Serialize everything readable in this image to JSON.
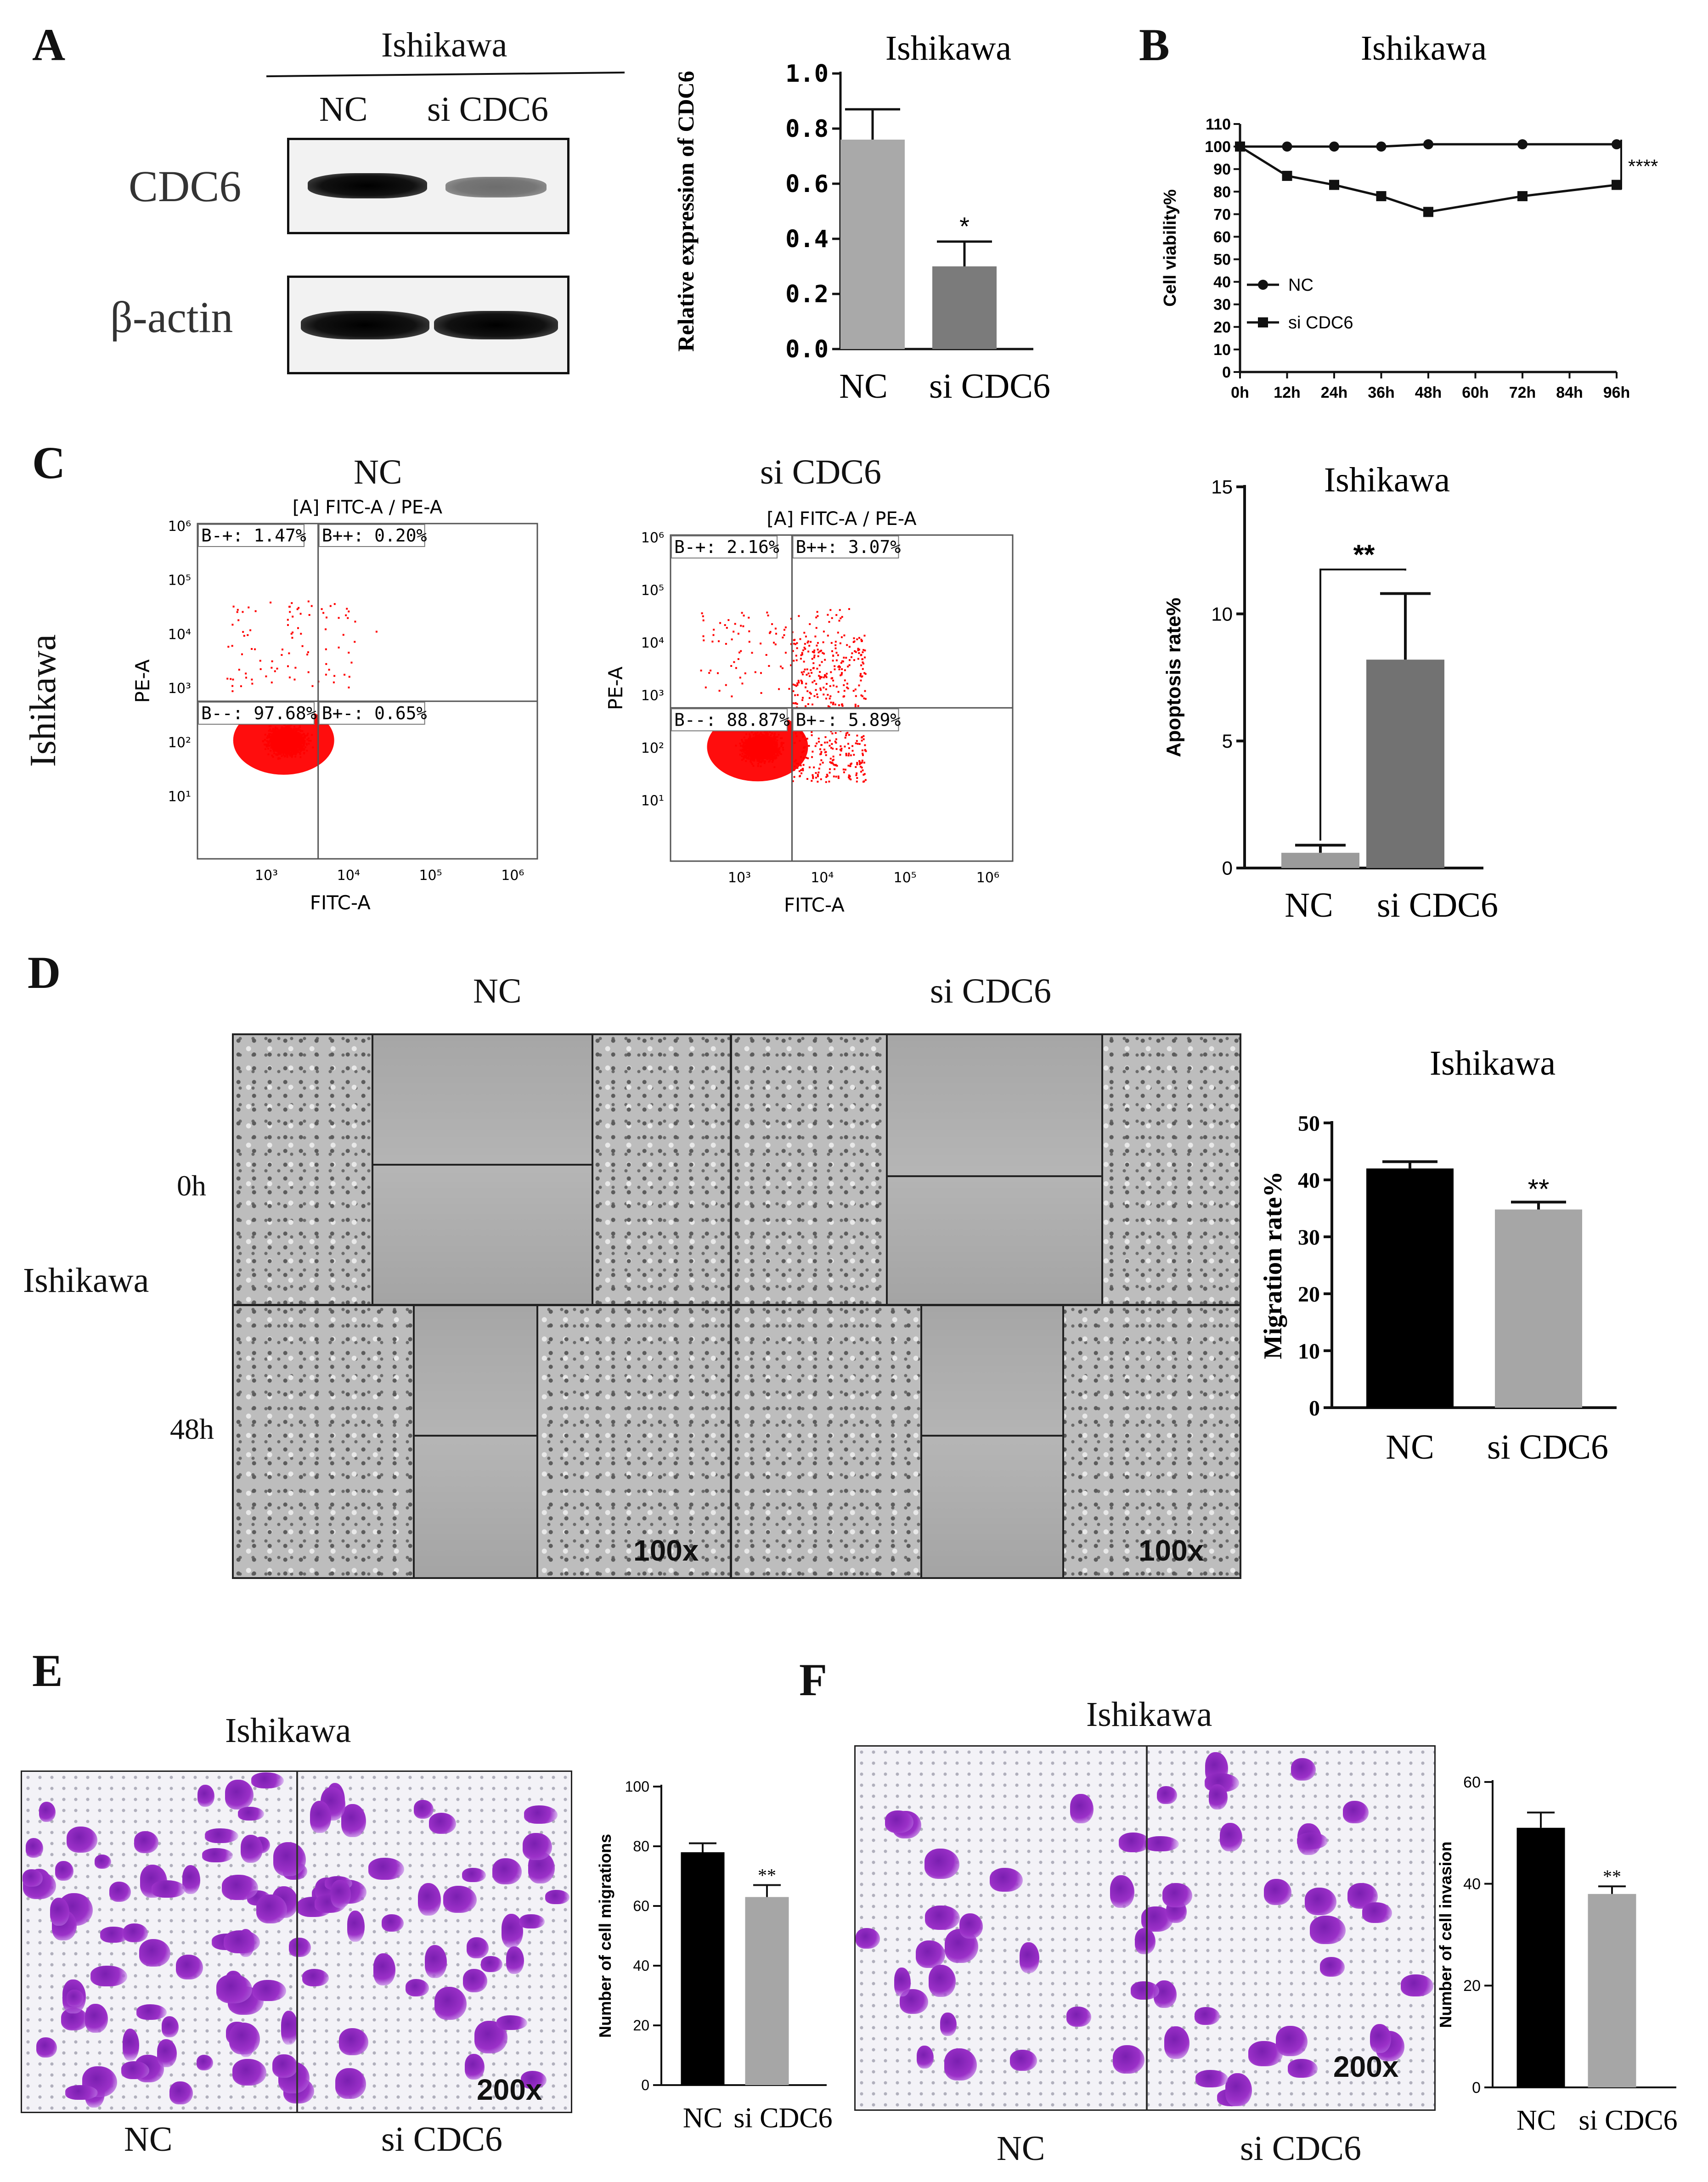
{
  "panels": {
    "A": "A",
    "B": "B",
    "C": "C",
    "D": "D",
    "E": "E",
    "F": "F"
  },
  "western_blot": {
    "cell_line": "Ishikawa",
    "lanes": [
      "NC",
      "si CDC6"
    ],
    "rows": [
      "CDC6",
      "β-actin"
    ]
  },
  "scratch": {
    "conditions": [
      "NC",
      "si CDC6"
    ],
    "cell_line": "Ishikawa",
    "times": [
      "0h",
      "48h"
    ],
    "magnification": "100x"
  },
  "transwell_migration": {
    "title": "Ishikawa",
    "labels": [
      "NC",
      "si CDC6"
    ],
    "magnification": "200x"
  },
  "transwell_invasion": {
    "title": "Ishikawa",
    "labels": [
      "NC",
      "si CDC6"
    ],
    "magnification": "200x"
  },
  "flow": {
    "cell_line": "Ishikawa",
    "plots": [
      {
        "title": "NC",
        "subtitle": "[A] FITC-A / PE-A",
        "q_ul": "B-+: 1.47%",
        "q_ur": "B++: 0.20%",
        "q_ll": "B--: 97.68%",
        "q_lr": "B+-: 0.65%"
      },
      {
        "title": "si CDC6",
        "subtitle": "[A] FITC-A / PE-A",
        "q_ul": "B-+: 2.16%",
        "q_ur": "B++: 3.07%",
        "q_ll": "B--: 88.87%",
        "q_lr": "B+-: 5.89%"
      }
    ],
    "xlabel": "FITC-A",
    "ylabel": "PE-A",
    "x_ticks": [
      "10³",
      "10⁴",
      "10⁵",
      "10⁶"
    ],
    "y_ticks": [
      "10⁶",
      "10⁵",
      "10⁴",
      "10³",
      "10²",
      "10¹"
    ]
  },
  "colors": {
    "dot": "#ff0000",
    "bar_light": "#a9a9a9",
    "bar_dark": "#7a7a7a",
    "bar_black": "#000000",
    "bar_grey": "#a6a6a6",
    "stain": "#9b30c8"
  },
  "chart_data": [
    {
      "type": "bar",
      "panel": "A",
      "title": "Ishikawa",
      "ylabel": "Relative expression of CDC6",
      "categories": [
        "NC",
        "si CDC6"
      ],
      "values": [
        0.76,
        0.3
      ],
      "errors": [
        0.11,
        0.09
      ],
      "ylim": [
        0,
        1.0
      ],
      "yticks": [
        "0.0",
        "0.2",
        "0.4",
        "0.6",
        "0.8",
        "1.0"
      ],
      "annotations": [
        "*"
      ]
    },
    {
      "type": "line",
      "panel": "B",
      "title": "Ishikawa",
      "ylabel": "Cell viability%",
      "x": [
        "0h",
        "12h",
        "24h",
        "36h",
        "48h",
        "60h",
        "72h",
        "84h",
        "96h"
      ],
      "series": [
        {
          "name": "NC",
          "x": [
            "0h",
            "12h",
            "24h",
            "36h",
            "48h",
            "72h",
            "96h"
          ],
          "values": [
            100,
            100,
            100,
            100,
            101,
            101,
            101
          ]
        },
        {
          "name": "si CDC6",
          "x": [
            "0h",
            "12h",
            "24h",
            "36h",
            "48h",
            "72h",
            "96h"
          ],
          "values": [
            100,
            87,
            83,
            78,
            71,
            78,
            83
          ]
        }
      ],
      "ylim": [
        0,
        110
      ],
      "yticks": [
        "0",
        "10",
        "20",
        "30",
        "40",
        "50",
        "60",
        "70",
        "80",
        "90",
        "100",
        "110"
      ],
      "annotations": [
        "****"
      ]
    },
    {
      "type": "bar",
      "panel": "C",
      "title": "Ishikawa",
      "ylabel": "Apoptosis rate%",
      "categories": [
        "NC",
        "si CDC6"
      ],
      "values": [
        0.6,
        8.2
      ],
      "errors": [
        0.3,
        2.6
      ],
      "ylim": [
        0,
        15
      ],
      "yticks": [
        "0",
        "5",
        "10",
        "15"
      ],
      "annotations": [
        "**"
      ]
    },
    {
      "type": "bar",
      "panel": "D",
      "title": "Ishikawa",
      "ylabel": "Migration rate%",
      "categories": [
        "NC",
        "si CDC6"
      ],
      "values": [
        42,
        34.8
      ],
      "errors": [
        1.2,
        1.3
      ],
      "ylim": [
        0,
        50
      ],
      "yticks": [
        "0",
        "10",
        "20",
        "30",
        "40",
        "50"
      ],
      "annotations": [
        "**"
      ]
    },
    {
      "type": "bar",
      "panel": "E",
      "title": "",
      "ylabel": "Number of cell migrations",
      "categories": [
        "NC",
        "si CDC6"
      ],
      "values": [
        78,
        63
      ],
      "errors": [
        3,
        4
      ],
      "ylim": [
        0,
        100
      ],
      "yticks": [
        "0",
        "20",
        "40",
        "60",
        "80",
        "100"
      ],
      "annotations": [
        "**"
      ]
    },
    {
      "type": "bar",
      "panel": "F",
      "title": "",
      "ylabel": "Number of cell invasion",
      "categories": [
        "NC",
        "si CDC6"
      ],
      "values": [
        51,
        38
      ],
      "errors": [
        3,
        1.5
      ],
      "ylim": [
        0,
        60
      ],
      "yticks": [
        "0",
        "20",
        "40",
        "60"
      ],
      "annotations": [
        "**"
      ]
    }
  ]
}
